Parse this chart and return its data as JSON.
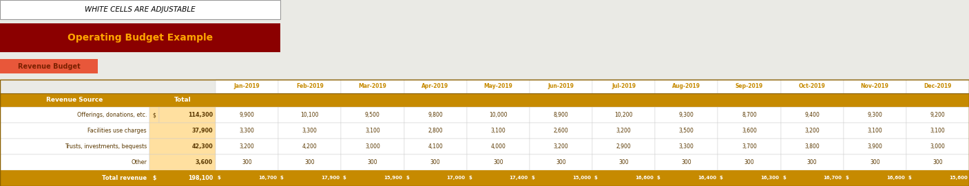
{
  "title_box_text": "WHITE CELLS ARE ADJUSTABLE",
  "main_title": "Operating Budget Example",
  "main_title_bg": "#8B0000",
  "main_title_color": "#FFA500",
  "sub_title": "Revenue Budget",
  "sub_title_bg": "#E8573A",
  "sub_title_color": "#7B2000",
  "months": [
    "Jan-2019",
    "Feb-2019",
    "Mar-2019",
    "Apr-2019",
    "May-2019",
    "Jun-2019",
    "Jul-2019",
    "Aug-2019",
    "Sep-2019",
    "Oct-2019",
    "Nov-2019",
    "Dec-2019"
  ],
  "header_bg": "#C68A00",
  "header_text_color": "#ffffff",
  "rows": [
    {
      "label": "Offerings, donations, etc.",
      "dollar": "$",
      "total": "114,300",
      "values": [
        "9,900",
        "10,100",
        "9,500",
        "9,800",
        "10,000",
        "8,900",
        "10,200",
        "9,300",
        "8,700",
        "9,400",
        "9,300",
        "9,200"
      ]
    },
    {
      "label": "Facilities use charges",
      "dollar": "",
      "total": "37,900",
      "values": [
        "3,300",
        "3,300",
        "3,100",
        "2,800",
        "3,100",
        "2,600",
        "3,200",
        "3,500",
        "3,600",
        "3,200",
        "3,100",
        "3,100"
      ]
    },
    {
      "label": "Trusts, investments, bequests",
      "dollar": "",
      "total": "42,300",
      "values": [
        "3,200",
        "4,200",
        "3,000",
        "4,100",
        "4,000",
        "3,200",
        "2,900",
        "3,300",
        "3,700",
        "3,800",
        "3,900",
        "3,000"
      ]
    },
    {
      "label": "Other",
      "dollar": "",
      "total": "3,600",
      "values": [
        "300",
        "300",
        "300",
        "300",
        "300",
        "300",
        "300",
        "300",
        "300",
        "300",
        "300",
        "300"
      ]
    }
  ],
  "total_row": {
    "label": "Total revenue",
    "dollar": "$",
    "total": "198,100",
    "values": [
      "16,700",
      "17,900",
      "15,900",
      "17,000",
      "17,400",
      "15,000",
      "16,600",
      "16,400",
      "16,300",
      "16,700",
      "16,600",
      "15,600"
    ]
  },
  "total_row_bg": "#C68A00",
  "total_row_text": "#ffffff",
  "data_bg_orange": "#FFE0A0",
  "data_bg_white": "#ffffff",
  "data_text": "#5A3800",
  "month_text_color": "#C68A00",
  "bg_color": "#EAEAE5"
}
